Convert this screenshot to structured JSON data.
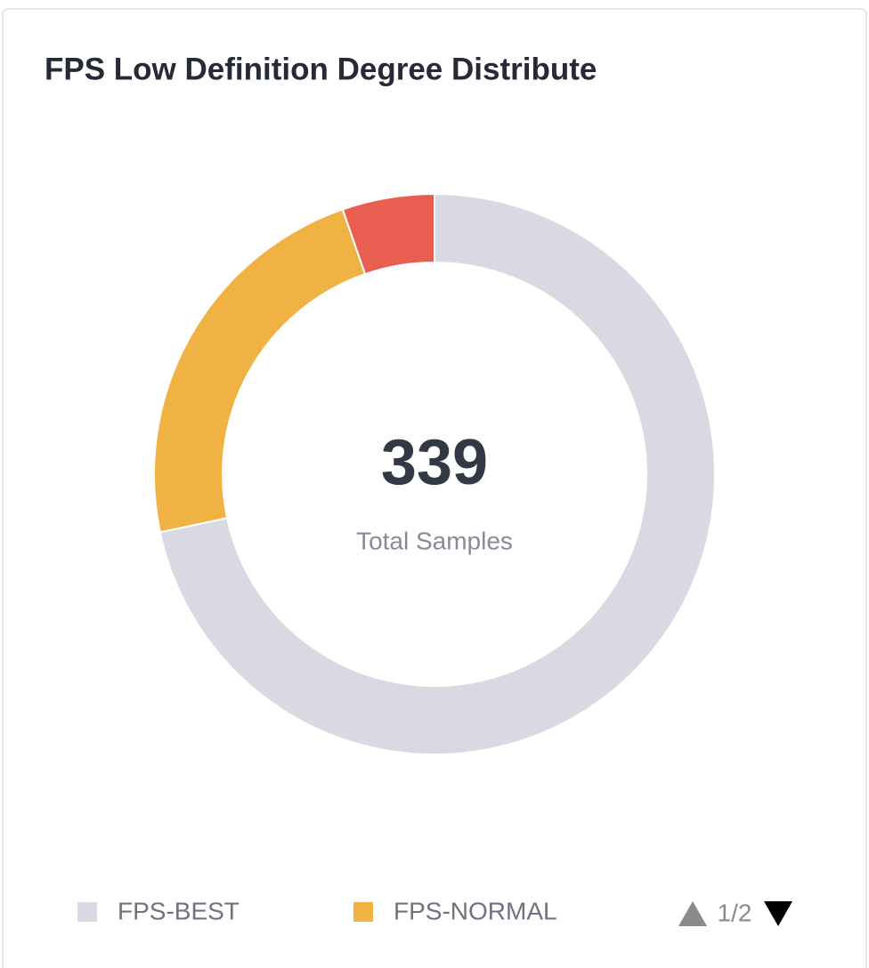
{
  "chart_data": {
    "type": "donut",
    "title": "FPS Low Definition Degree Distribute",
    "categories": [
      "FPS-BEST",
      "FPS-NORMAL",
      null
    ],
    "values": [
      243,
      78,
      18
    ],
    "colors": [
      "#d9d9e3",
      "#f0b243",
      "#e85f52"
    ],
    "total": 339,
    "center_label": "Total Samples",
    "legend_page": "1/2",
    "legend_position": "bottom"
  }
}
